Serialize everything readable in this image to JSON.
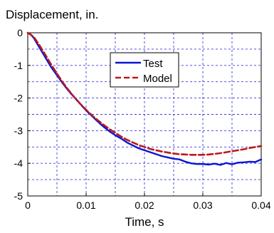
{
  "chart_data": {
    "type": "line",
    "title": "Displacement, in.",
    "xlabel": "Time, s",
    "ylabel": "",
    "xlim": [
      0,
      0.04
    ],
    "ylim": [
      -5,
      0
    ],
    "x_ticks": [
      0,
      0.01,
      0.02,
      0.03,
      0.04
    ],
    "x_tick_labels": [
      "0",
      "0.01",
      "0.02",
      "0.03",
      "0.04"
    ],
    "y_ticks": [
      0,
      -1,
      -2,
      -3,
      -4,
      -5
    ],
    "y_tick_labels": [
      "0",
      "-1",
      "-2",
      "-3",
      "-4",
      "-5"
    ],
    "grid": true,
    "legend_position": "upper-center",
    "series": [
      {
        "name": "Test",
        "color": "#0a14d6",
        "style": "solid",
        "x": [
          0,
          0.0005,
          0.001,
          0.0015,
          0.002,
          0.003,
          0.004,
          0.005,
          0.006,
          0.007,
          0.008,
          0.009,
          0.01,
          0.011,
          0.012,
          0.013,
          0.014,
          0.015,
          0.016,
          0.017,
          0.018,
          0.019,
          0.02,
          0.021,
          0.022,
          0.023,
          0.024,
          0.025,
          0.026,
          0.027,
          0.028,
          0.029,
          0.03,
          0.031,
          0.032,
          0.033,
          0.034,
          0.035,
          0.036,
          0.037,
          0.038,
          0.039,
          0.04
        ],
        "y": [
          0,
          -0.05,
          -0.15,
          -0.3,
          -0.45,
          -0.75,
          -1.05,
          -1.3,
          -1.55,
          -1.78,
          -1.98,
          -2.18,
          -2.38,
          -2.55,
          -2.72,
          -2.88,
          -3.02,
          -3.14,
          -3.24,
          -3.36,
          -3.45,
          -3.54,
          -3.6,
          -3.66,
          -3.72,
          -3.78,
          -3.82,
          -3.86,
          -3.88,
          -3.95,
          -4.0,
          -4.02,
          -4.02,
          -4.04,
          -4.01,
          -4.05,
          -3.99,
          -4.03,
          -3.98,
          -3.97,
          -3.95,
          -3.96,
          -3.88
        ]
      },
      {
        "name": "Model",
        "color": "#bb1a1a",
        "style": "dashed",
        "x": [
          0,
          0.001,
          0.002,
          0.003,
          0.004,
          0.005,
          0.006,
          0.007,
          0.008,
          0.009,
          0.01,
          0.011,
          0.012,
          0.013,
          0.014,
          0.015,
          0.016,
          0.017,
          0.018,
          0.019,
          0.02,
          0.021,
          0.022,
          0.023,
          0.024,
          0.025,
          0.026,
          0.027,
          0.028,
          0.029,
          0.03,
          0.031,
          0.032,
          0.033,
          0.034,
          0.035,
          0.036,
          0.037,
          0.038,
          0.039,
          0.04
        ],
        "y": [
          0,
          -0.12,
          -0.38,
          -0.67,
          -0.97,
          -1.25,
          -1.52,
          -1.76,
          -1.98,
          -2.18,
          -2.36,
          -2.53,
          -2.68,
          -2.82,
          -2.95,
          -3.07,
          -3.18,
          -3.28,
          -3.36,
          -3.44,
          -3.5,
          -3.56,
          -3.6,
          -3.64,
          -3.67,
          -3.7,
          -3.72,
          -3.73,
          -3.74,
          -3.74,
          -3.74,
          -3.73,
          -3.71,
          -3.69,
          -3.66,
          -3.63,
          -3.6,
          -3.57,
          -3.53,
          -3.5,
          -3.47
        ]
      }
    ]
  }
}
